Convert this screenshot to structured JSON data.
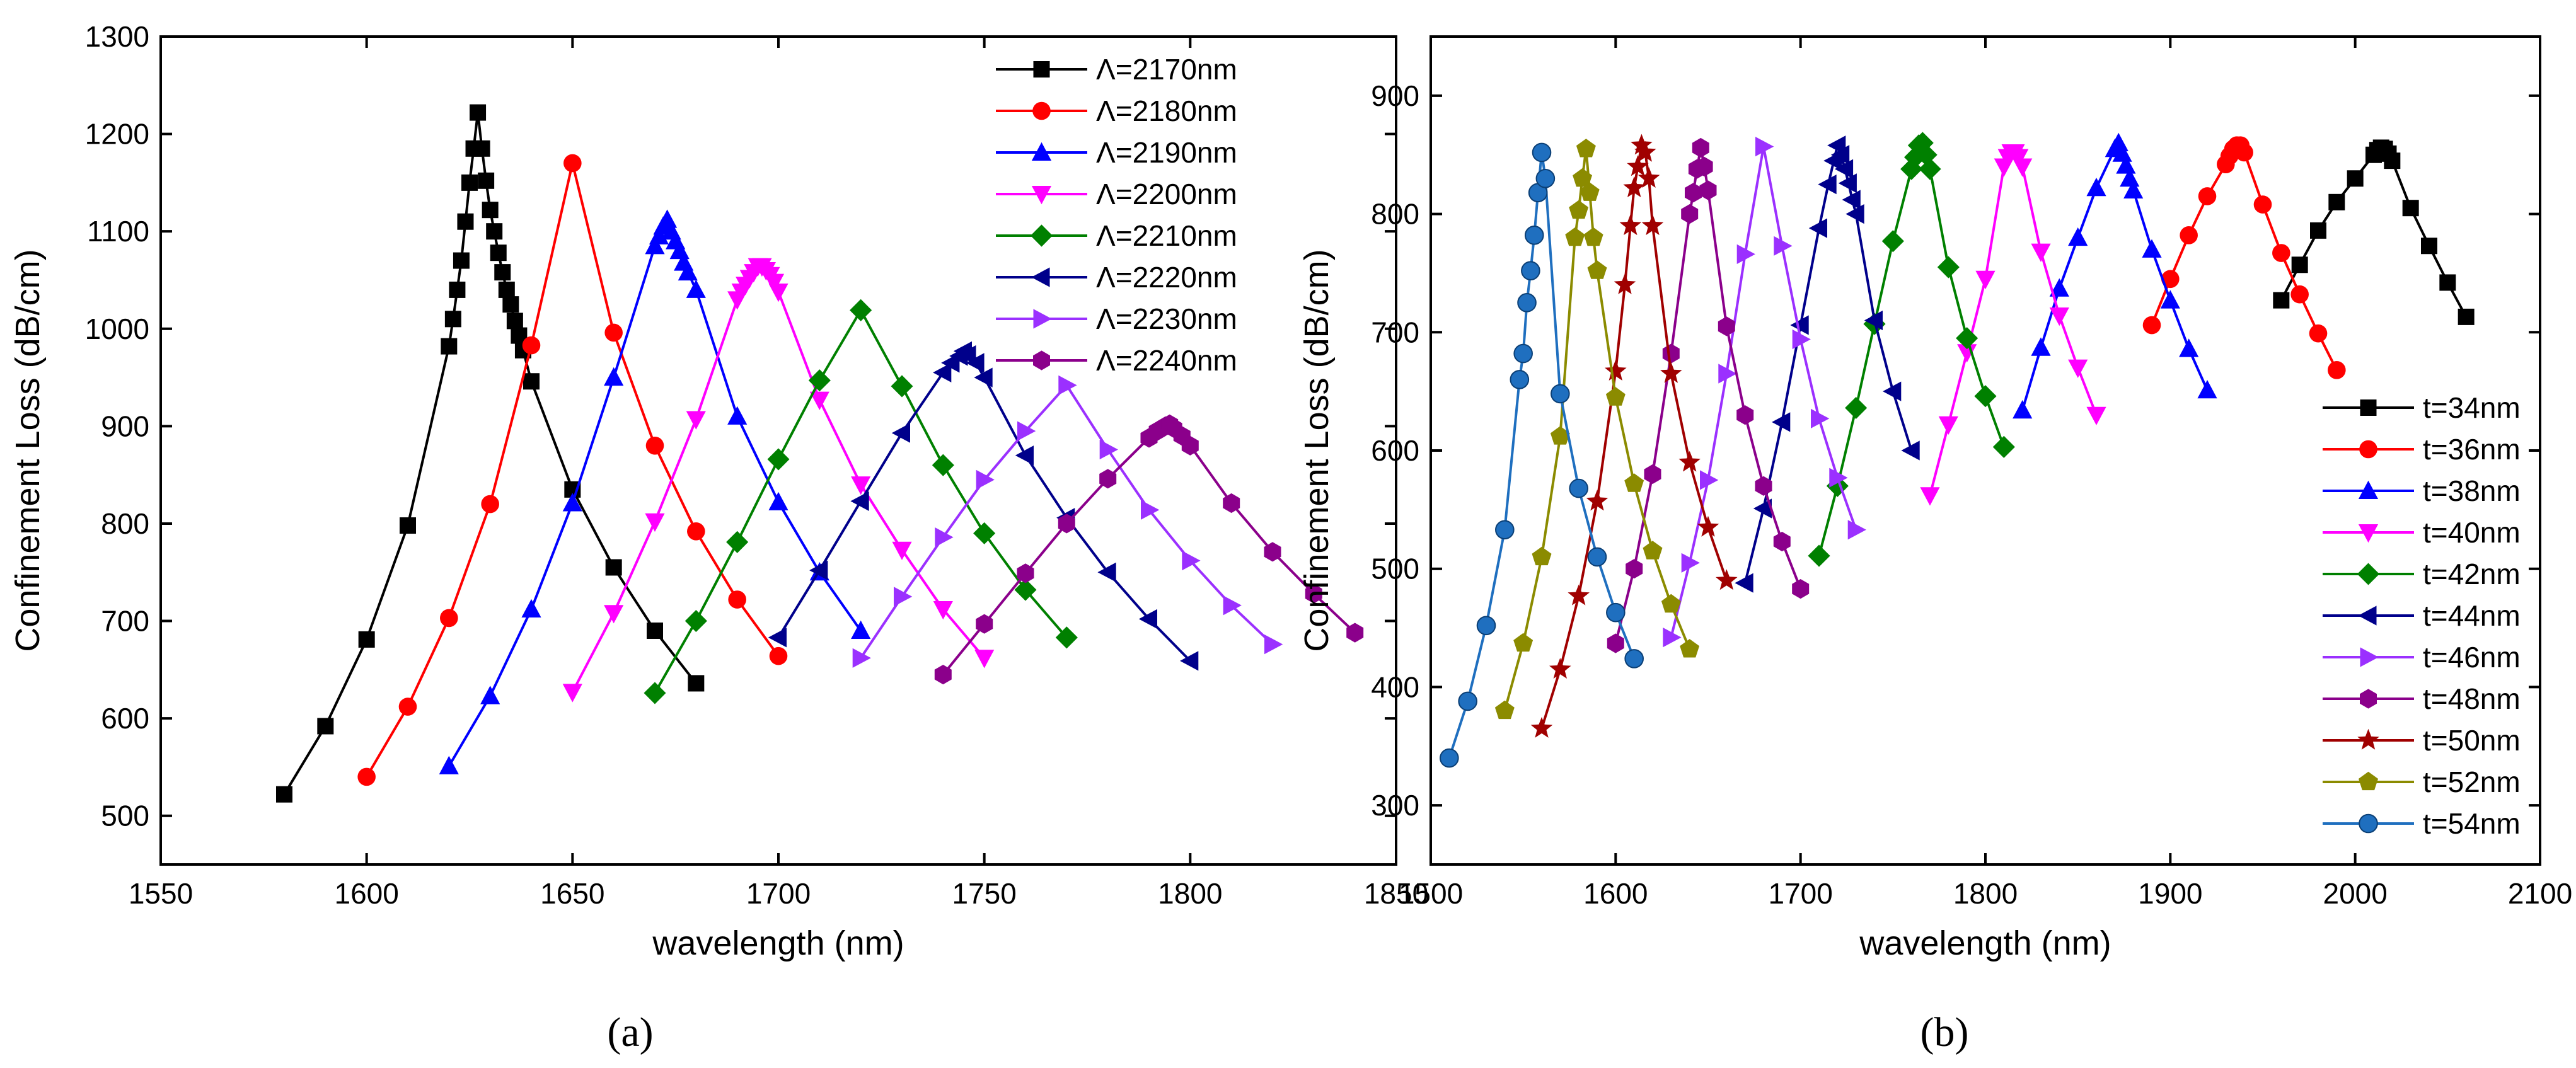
{
  "chart_data": [
    {
      "type": "line",
      "panel_label": "(a)",
      "xlabel": "wavelength (nm)",
      "ylabel": "Confinement  Loss (dB/cm)",
      "xlim": [
        1550,
        1850
      ],
      "ylim": [
        450,
        1300
      ],
      "xticks": [
        1550,
        1600,
        1650,
        1700,
        1750,
        1800,
        1850
      ],
      "yticks": [
        500,
        600,
        700,
        800,
        900,
        1000,
        1100,
        1200,
        1300
      ],
      "legend_position": "top-right",
      "series": [
        {
          "name": "Λ=2170nm",
          "color": "#000000",
          "marker": "square",
          "x": [
            1580,
            1590,
            1600,
            1610,
            1620,
            1621,
            1622,
            1623,
            1624,
            1625,
            1626,
            1627,
            1628,
            1629,
            1630,
            1631,
            1632,
            1633,
            1634,
            1635,
            1636,
            1637,
            1638,
            1640,
            1650,
            1660,
            1670,
            1680
          ],
          "y": [
            522,
            592,
            681,
            798,
            982,
            1010,
            1040,
            1070,
            1110,
            1150,
            1185,
            1222,
            1185,
            1152,
            1122,
            1100,
            1078,
            1058,
            1040,
            1025,
            1008,
            993,
            978,
            946,
            835,
            755,
            690,
            636
          ]
        },
        {
          "name": "Λ=2180nm",
          "color": "#ff0000",
          "marker": "circle",
          "x": [
            1600,
            1610,
            1620,
            1630,
            1640,
            1650,
            1660,
            1670,
            1680,
            1690,
            1700
          ],
          "y": [
            540,
            612,
            703,
            820,
            983,
            1170,
            996,
            880,
            792,
            722,
            664
          ]
        },
        {
          "name": "Λ=2190nm",
          "color": "#0000ff",
          "marker": "triangle-up",
          "x": [
            1620,
            1630,
            1640,
            1650,
            1660,
            1670,
            1671,
            1672,
            1673,
            1674,
            1675,
            1676,
            1677,
            1678,
            1680,
            1690,
            1700,
            1710,
            1720
          ],
          "y": [
            551,
            623,
            712,
            821,
            950,
            1085,
            1095,
            1105,
            1112,
            1100,
            1090,
            1080,
            1068,
            1058,
            1040,
            910,
            822,
            750,
            690
          ]
        },
        {
          "name": "Λ=2200nm",
          "color": "#ff00ff",
          "marker": "triangle-down",
          "x": [
            1650,
            1660,
            1670,
            1680,
            1690,
            1691,
            1692,
            1693,
            1694,
            1695,
            1696,
            1697,
            1698,
            1699,
            1700,
            1710,
            1720,
            1730,
            1740,
            1750
          ],
          "y": [
            627,
            708,
            802,
            907,
            1030,
            1038,
            1045,
            1052,
            1058,
            1064,
            1064,
            1060,
            1055,
            1048,
            1038,
            927,
            840,
            773,
            712,
            662
          ]
        },
        {
          "name": "Λ=2210nm",
          "color": "#008000",
          "marker": "diamond",
          "x": [
            1670,
            1680,
            1690,
            1700,
            1710,
            1720,
            1730,
            1740,
            1750,
            1760,
            1770
          ],
          "y": [
            626,
            700,
            781,
            866,
            947,
            1019,
            941,
            860,
            790,
            732,
            683
          ]
        },
        {
          "name": "Λ=2220nm",
          "color": "#00008b",
          "marker": "triangle-left",
          "x": [
            1700,
            1710,
            1720,
            1730,
            1740,
            1742,
            1744,
            1745,
            1746,
            1748,
            1750,
            1760,
            1770,
            1780,
            1790,
            1800
          ],
          "y": [
            683,
            752,
            823,
            893,
            955,
            965,
            972,
            977,
            973,
            965,
            950,
            870,
            806,
            750,
            702,
            659
          ]
        },
        {
          "name": "Λ=2230nm",
          "color": "#9b30ff",
          "marker": "triangle-right",
          "x": [
            1720,
            1730,
            1740,
            1750,
            1760,
            1770,
            1780,
            1790,
            1800,
            1810,
            1820
          ],
          "y": [
            662,
            725,
            786,
            845,
            895,
            942,
            876,
            814,
            762,
            716,
            676
          ]
        },
        {
          "name": "Λ=2240nm",
          "color": "#8b008b",
          "marker": "hexagon",
          "x": [
            1740,
            1750,
            1760,
            1770,
            1780,
            1790,
            1792,
            1794,
            1795,
            1796,
            1798,
            1800,
            1810,
            1820,
            1830,
            1840
          ],
          "y": [
            645,
            697,
            749,
            800,
            846,
            888,
            895,
            900,
            902,
            898,
            890,
            880,
            821,
            771,
            728,
            688
          ]
        }
      ]
    },
    {
      "type": "line",
      "panel_label": "(b)",
      "xlabel": "wavelength (nm)",
      "ylabel": "Confinement  Loss (dB/cm)",
      "xlim": [
        1500,
        2100
      ],
      "ylim": [
        250,
        950
      ],
      "xticks": [
        1500,
        1600,
        1700,
        1800,
        1900,
        2000,
        2100
      ],
      "yticks": [
        300,
        400,
        500,
        600,
        700,
        800,
        900
      ],
      "legend_position": "bottom-right",
      "series": [
        {
          "name": "t=34nm",
          "color": "#000000",
          "marker": "square",
          "x": [
            1960,
            1970,
            1980,
            1990,
            2000,
            2010,
            2012,
            2014,
            2016,
            2018,
            2020,
            2030,
            2040,
            2050,
            2060
          ],
          "y": [
            727,
            757,
            786,
            810,
            830,
            850,
            854,
            856,
            855,
            851,
            845,
            805,
            773,
            742,
            713
          ]
        },
        {
          "name": "t=36nm",
          "color": "#ff0000",
          "marker": "circle",
          "x": [
            1890,
            1900,
            1910,
            1920,
            1930,
            1932,
            1934,
            1936,
            1938,
            1940,
            1950,
            1960,
            1970,
            1980,
            1990
          ],
          "y": [
            706,
            745,
            782,
            815,
            842,
            849,
            855,
            858,
            858,
            852,
            808,
            767,
            732,
            699,
            668
          ]
        },
        {
          "name": "t=38nm",
          "color": "#0000ff",
          "marker": "triangle-up",
          "x": [
            1820,
            1830,
            1840,
            1850,
            1860,
            1870,
            1872,
            1874,
            1876,
            1878,
            1880,
            1890,
            1900,
            1910,
            1920
          ],
          "y": [
            634,
            687,
            737,
            780,
            822,
            855,
            860,
            851,
            841,
            830,
            820,
            770,
            727,
            686,
            651
          ]
        },
        {
          "name": "t=40nm",
          "color": "#ff00ff",
          "marker": "triangle-down",
          "x": [
            1770,
            1780,
            1790,
            1800,
            1810,
            1812,
            1814,
            1816,
            1818,
            1820,
            1830,
            1840,
            1850,
            1860
          ],
          "y": [
            562,
            622,
            683,
            745,
            840,
            848,
            852,
            852,
            848,
            840,
            768,
            714,
            670,
            630
          ]
        },
        {
          "name": "t=42nm",
          "color": "#008000",
          "marker": "diamond",
          "x": [
            1710,
            1720,
            1730,
            1740,
            1750,
            1760,
            1762,
            1764,
            1766,
            1768,
            1770,
            1780,
            1790,
            1800,
            1810
          ],
          "y": [
            511,
            570,
            636,
            707,
            777,
            838,
            848,
            858,
            860,
            850,
            838,
            755,
            695,
            646,
            603
          ]
        },
        {
          "name": "t=44nm",
          "color": "#00008b",
          "marker": "triangle-left",
          "x": [
            1670,
            1680,
            1690,
            1700,
            1710,
            1715,
            1718,
            1720,
            1722,
            1724,
            1726,
            1728,
            1730,
            1740,
            1750,
            1760
          ],
          "y": [
            488,
            551,
            624,
            706,
            788,
            825,
            845,
            858,
            850,
            838,
            826,
            812,
            800,
            710,
            650,
            600
          ]
        },
        {
          "name": "t=46nm",
          "color": "#9b30ff",
          "marker": "triangle-right",
          "x": [
            1630,
            1640,
            1650,
            1660,
            1670,
            1680,
            1690,
            1700,
            1710,
            1720,
            1730
          ],
          "y": [
            442,
            505,
            575,
            665,
            766,
            857,
            773,
            694,
            627,
            577,
            533
          ]
        },
        {
          "name": "t=48nm",
          "color": "#8b008b",
          "marker": "hexagon",
          "x": [
            1600,
            1610,
            1620,
            1630,
            1640,
            1642,
            1644,
            1646,
            1648,
            1650,
            1660,
            1670,
            1680,
            1690,
            1700
          ],
          "y": [
            437,
            500,
            580,
            682,
            800,
            818,
            838,
            856,
            840,
            820,
            705,
            630,
            570,
            523,
            483
          ]
        },
        {
          "name": "t=50nm",
          "color": "#a00000",
          "marker": "star",
          "x": [
            1560,
            1570,
            1580,
            1590,
            1600,
            1605,
            1608,
            1610,
            1612,
            1614,
            1616,
            1618,
            1620,
            1630,
            1640,
            1650,
            1660
          ],
          "y": [
            365,
            415,
            477,
            557,
            667,
            740,
            790,
            822,
            840,
            858,
            852,
            830,
            790,
            665,
            590,
            535,
            490
          ]
        },
        {
          "name": "t=52nm",
          "color": "#8b8b00",
          "marker": "pentagon",
          "x": [
            1540,
            1550,
            1560,
            1570,
            1578,
            1580,
            1582,
            1584,
            1586,
            1588,
            1590,
            1600,
            1610,
            1620,
            1630,
            1640
          ],
          "y": [
            380,
            437,
            510,
            612,
            780,
            803,
            830,
            855,
            818,
            780,
            752,
            645,
            572,
            515,
            470,
            432
          ]
        },
        {
          "name": "t=54nm",
          "color": "#1f6fbf",
          "marker": "sphere",
          "x": [
            1510,
            1520,
            1530,
            1540,
            1548,
            1550,
            1552,
            1554,
            1556,
            1558,
            1560,
            1562,
            1570,
            1580,
            1590,
            1600,
            1610
          ],
          "y": [
            340,
            388,
            452,
            533,
            660,
            682,
            725,
            752,
            782,
            818,
            852,
            830,
            648,
            568,
            510,
            463,
            424
          ]
        }
      ]
    }
  ]
}
